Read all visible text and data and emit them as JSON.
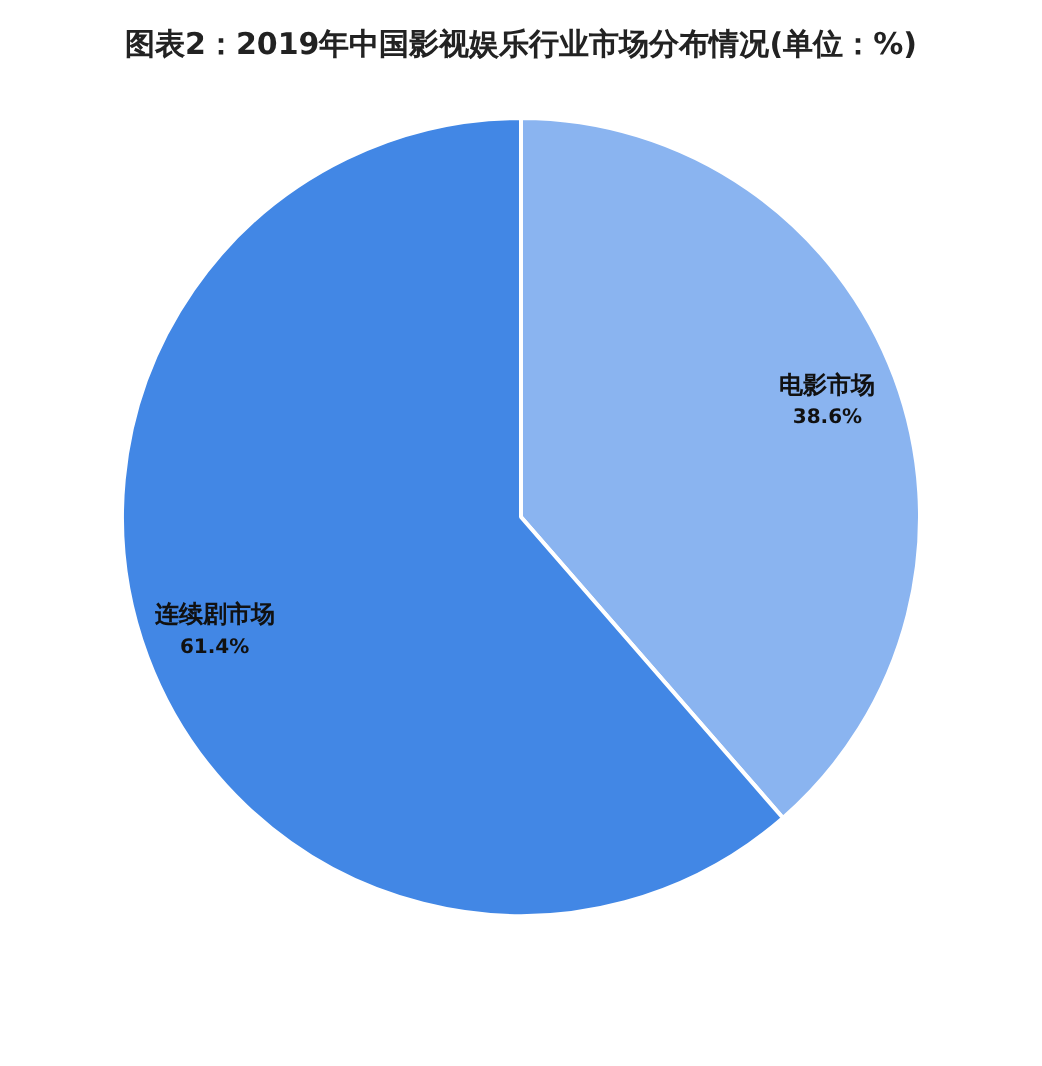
{
  "chart_data": {
    "type": "pie",
    "title": "图表2：2019年中国影视娱乐行业市场分布情况(单位：%)",
    "categories": [
      "电影市场",
      "连续剧市场"
    ],
    "values": [
      38.6,
      61.4
    ],
    "colors": [
      "#8ab4f0",
      "#4287e5"
    ],
    "value_labels": [
      "38.6%",
      "61.4%"
    ],
    "legend": false
  }
}
